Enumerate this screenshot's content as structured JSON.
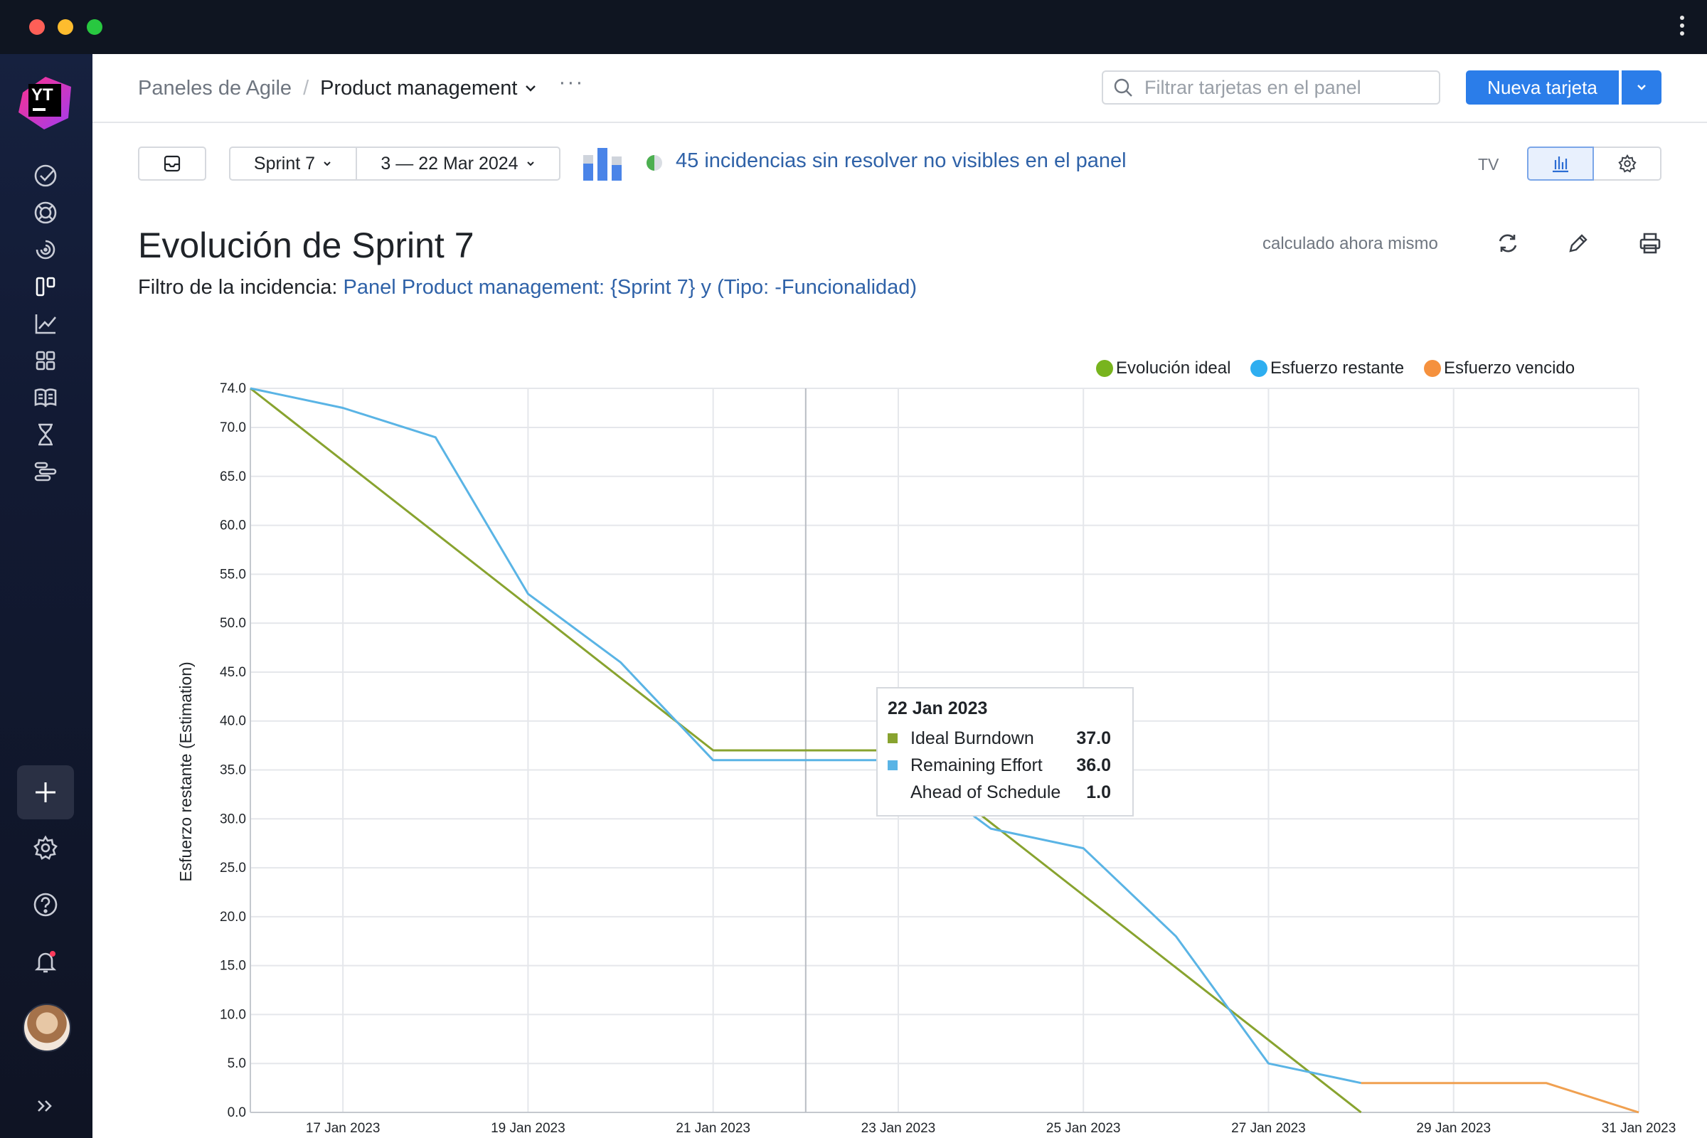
{
  "window": {
    "controls": [
      "close",
      "minimize",
      "maximize"
    ]
  },
  "sidebar": {
    "logo_text": "YT",
    "items": [
      {
        "icon": "check-circle-icon"
      },
      {
        "icon": "lifebuoy-icon"
      },
      {
        "icon": "spiral-icon"
      },
      {
        "icon": "agile-board-icon"
      },
      {
        "icon": "reports-chart-icon"
      },
      {
        "icon": "dashboard-grid-icon"
      },
      {
        "icon": "knowledge-base-icon"
      },
      {
        "icon": "hourglass-icon"
      },
      {
        "icon": "gantt-icon"
      }
    ],
    "bottom": [
      "plus-icon",
      "gear-icon",
      "help-icon",
      "notification-bell-icon",
      "avatar",
      "expand-chevrons-icon"
    ]
  },
  "header": {
    "breadcrumb_root": "Paneles de Agile",
    "breadcrumb_current": "Product management",
    "more": "···",
    "search_placeholder": "Filtrar tarjetas en el panel",
    "new_card_label": "Nueva tarjeta"
  },
  "toolbar": {
    "sprint_label": "Sprint 7",
    "date_range": "3 — 22 Mar 2024",
    "hint_text": "45 incidencias sin resolver no visibles en el panel",
    "tv_label": "TV"
  },
  "report": {
    "title": "Evolución de Sprint 7",
    "filter_label": "Filtro de la incidencia:",
    "filter_query": "Panel Product management: {Sprint 7} y (Tipo: -Funcionalidad)",
    "calculated_text": "calculado ahora mismo"
  },
  "colors": {
    "ideal": "#88a32f",
    "remaining": "#5ab4e5",
    "overdue": "#f0a050",
    "legend_ideal": "#78b41e",
    "legend_remaining": "#2eaef0",
    "legend_overdue": "#f5913e",
    "accent": "#2b7de9"
  },
  "chart_data": {
    "type": "line",
    "ylabel": "Esfuerzo restante (Estimation)",
    "ylim": [
      0,
      74
    ],
    "y_ticks": [
      "0.0",
      "5.0",
      "10.0",
      "15.0",
      "20.0",
      "25.0",
      "30.0",
      "35.0",
      "40.0",
      "45.0",
      "50.0",
      "55.0",
      "60.0",
      "65.0",
      "70.0",
      "74.0"
    ],
    "x_ticks": [
      "17 Jan 2023",
      "19 Jan 2023",
      "21 Jan 2023",
      "23 Jan 2023",
      "25 Jan 2023",
      "27 Jan 2023",
      "29 Jan 2023",
      "31 Jan 2023"
    ],
    "xlim": [
      "16 Jan 2023",
      "31 Jan 2023"
    ],
    "legend": [
      "Evolución ideal",
      "Esfuerzo restante",
      "Esfuerzo vencido"
    ],
    "legend_position": "top-right",
    "grid": true,
    "series": [
      {
        "name": "Evolución ideal",
        "points": [
          [
            "16 Jan 2023",
            74.0
          ],
          [
            "21 Jan 2023",
            37.0
          ],
          [
            "23 Jan 2023",
            37.0
          ],
          [
            "28 Jan 2023",
            0.0
          ]
        ]
      },
      {
        "name": "Esfuerzo restante",
        "points": [
          [
            "16 Jan 2023",
            74.0
          ],
          [
            "17 Jan 2023",
            72.0
          ],
          [
            "18 Jan 2023",
            69.0
          ],
          [
            "19 Jan 2023",
            53.0
          ],
          [
            "20 Jan 2023",
            46.0
          ],
          [
            "21 Jan 2023",
            36.0
          ],
          [
            "23 Jan 2023",
            36.0
          ],
          [
            "24 Jan 2023",
            29.0
          ],
          [
            "25 Jan 2023",
            27.0
          ],
          [
            "26 Jan 2023",
            18.0
          ],
          [
            "27 Jan 2023",
            5.0
          ],
          [
            "28 Jan 2023",
            3.0
          ]
        ]
      },
      {
        "name": "Esfuerzo vencido",
        "points": [
          [
            "28 Jan 2023",
            3.0
          ],
          [
            "30 Jan 2023",
            3.0
          ],
          [
            "31 Jan 2023",
            0.0
          ]
        ]
      }
    ],
    "crosshair_date": "22 Jan 2023",
    "tooltip": {
      "date": "22 Jan 2023",
      "rows": [
        {
          "label": "Ideal Burndown",
          "value": "37.0"
        },
        {
          "label": "Remaining Effort",
          "value": "36.0"
        },
        {
          "label": "Ahead of Schedule",
          "value": "1.0"
        }
      ]
    }
  }
}
